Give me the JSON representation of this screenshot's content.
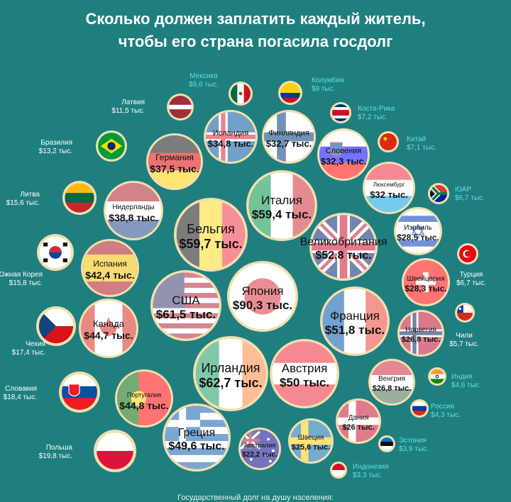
{
  "title_line1": "Сколько должен заплатить каждый житель,",
  "title_line2": "чтобы его страна погасила госдолг",
  "footnote": "Государственный долг на душу населения:",
  "colors": {
    "background": "#1f7f7f",
    "ring": "#f2dfae",
    "outside_label": "#ffffff",
    "outside_label_teal": "#5fe0e0",
    "inside_label": "#111111"
  },
  "chart_data": {
    "type": "bubble",
    "title": "Сколько должен заплатить каждый житель, чтобы его страна погасила госдолг",
    "unit": "тыс. $",
    "series": [
      {
        "name": "Япония",
        "label": "$90,3 тыс.",
        "value": 90.3,
        "flag": "japan"
      },
      {
        "name": "Ирландия",
        "label": "$62,7 тыс.",
        "value": 62.7,
        "flag": "ireland"
      },
      {
        "name": "США",
        "label": "$61,5 тыс.",
        "value": 61.5,
        "flag": "usa"
      },
      {
        "name": "Бельгия",
        "label": "$59,7 тыс.",
        "value": 59.7,
        "flag": "belgium"
      },
      {
        "name": "Италия",
        "label": "$59,4 тыс.",
        "value": 59.4,
        "flag": "italy"
      },
      {
        "name": "Великобритания",
        "label": "$52,8 тыс.",
        "value": 52.8,
        "flag": "uk"
      },
      {
        "name": "Франция",
        "label": "$51,8 тыс.",
        "value": 51.8,
        "flag": "france"
      },
      {
        "name": "Австрия",
        "label": "$50 тыс.",
        "value": 50.0,
        "flag": "austria"
      },
      {
        "name": "Греция",
        "label": "$49,6 тыс.",
        "value": 49.6,
        "flag": "greece"
      },
      {
        "name": "Португалия",
        "label": "$44,8 тыс.",
        "value": 44.8,
        "flag": "portugal"
      },
      {
        "name": "Канада",
        "label": "$44,7 тыс.",
        "value": 44.7,
        "flag": "canada"
      },
      {
        "name": "Испания",
        "label": "$42,4 тыс.",
        "value": 42.4,
        "flag": "spain"
      },
      {
        "name": "Нидерланды",
        "label": "$38,8 тыс.",
        "value": 38.8,
        "flag": "netherlands"
      },
      {
        "name": "Германия",
        "label": "$37,5 тыс.",
        "value": 37.5,
        "flag": "germany"
      },
      {
        "name": "Исландия",
        "label": "$34,8 тыс.",
        "value": 34.8,
        "flag": "iceland"
      },
      {
        "name": "Финляндия",
        "label": "$32,7 тыс.",
        "value": 32.7,
        "flag": "finland"
      },
      {
        "name": "Словения",
        "label": "$32,3 тыс.",
        "value": 32.3,
        "flag": "slovenia"
      },
      {
        "name": "Люксембург",
        "label": "$32 тыс.",
        "value": 32.0,
        "flag": "luxembourg"
      },
      {
        "name": "Израиль",
        "label": "$28,5 тыс.",
        "value": 28.5,
        "flag": "israel"
      },
      {
        "name": "Швейцария",
        "label": "$28,3 тыс.",
        "value": 28.3,
        "flag": "switzerland"
      },
      {
        "name": "Норвегия",
        "label": "$26,8 тыс.",
        "value": 26.8,
        "flag": "norway"
      },
      {
        "name": "Венгрия",
        "label": "$26,8 тыс.",
        "value": 26.8,
        "flag": "hungary"
      },
      {
        "name": "Дания",
        "label": "$26 тыс.",
        "value": 26.0,
        "flag": "denmark"
      },
      {
        "name": "Швеция",
        "label": "$25,6 тыс.",
        "value": 25.6,
        "flag": "sweden"
      },
      {
        "name": "Австралия",
        "label": "$22,2 тыс.",
        "value": 22.2,
        "flag": "australia"
      },
      {
        "name": "Польша",
        "label": "$19,8 тыс.",
        "value": 19.8,
        "flag": "poland"
      },
      {
        "name": "Словакия",
        "label": "$18,4 тыс.",
        "value": 18.4,
        "flag": "slovakia"
      },
      {
        "name": "Чехия",
        "label": "$17,4 тыс.",
        "value": 17.4,
        "flag": "czechia"
      },
      {
        "name": "Южная Корея",
        "label": "$15,8 тыс.",
        "value": 15.8,
        "flag": "southkorea"
      },
      {
        "name": "Литва",
        "label": "$15,6 тыс.",
        "value": 15.6,
        "flag": "lithuania"
      },
      {
        "name": "Бразилия",
        "label": "$13,2 тыс.",
        "value": 13.2,
        "flag": "brazil"
      },
      {
        "name": "Латвия",
        "label": "$11,5 тыс.",
        "value": 11.5,
        "flag": "latvia"
      },
      {
        "name": "Мексика",
        "label": "$9,6 тыс.",
        "value": 9.6,
        "flag": "mexico"
      },
      {
        "name": "Колумбия",
        "label": "$9 тыс.",
        "value": 9.0,
        "flag": "colombia"
      },
      {
        "name": "Коста-Рика",
        "label": "$7,2 тыс.",
        "value": 7.2,
        "flag": "costarica"
      },
      {
        "name": "Китай",
        "label": "$7,1 тыс.",
        "value": 7.1,
        "flag": "china"
      },
      {
        "name": "ЮАР",
        "label": "$6,7 тыс.",
        "value": 6.7,
        "flag": "southafrica"
      },
      {
        "name": "Турция",
        "label": "$6,7 тыс.",
        "value": 6.7,
        "flag": "turkey"
      },
      {
        "name": "Чили",
        "label": "$5,7 тыс.",
        "value": 5.7,
        "flag": "chile"
      },
      {
        "name": "Индия",
        "label": "$4,6 тыс.",
        "value": 4.6,
        "flag": "india"
      },
      {
        "name": "Россия",
        "label": "$4,3 тыс.",
        "value": 4.3,
        "flag": "russia"
      },
      {
        "name": "Эстония",
        "label": "$3,9 тыс.",
        "value": 3.9,
        "flag": "estonia"
      },
      {
        "name": "Индонезия",
        "label": "$3,3 тыс.",
        "value": 3.3,
        "flag": "indonesia"
      }
    ]
  }
}
